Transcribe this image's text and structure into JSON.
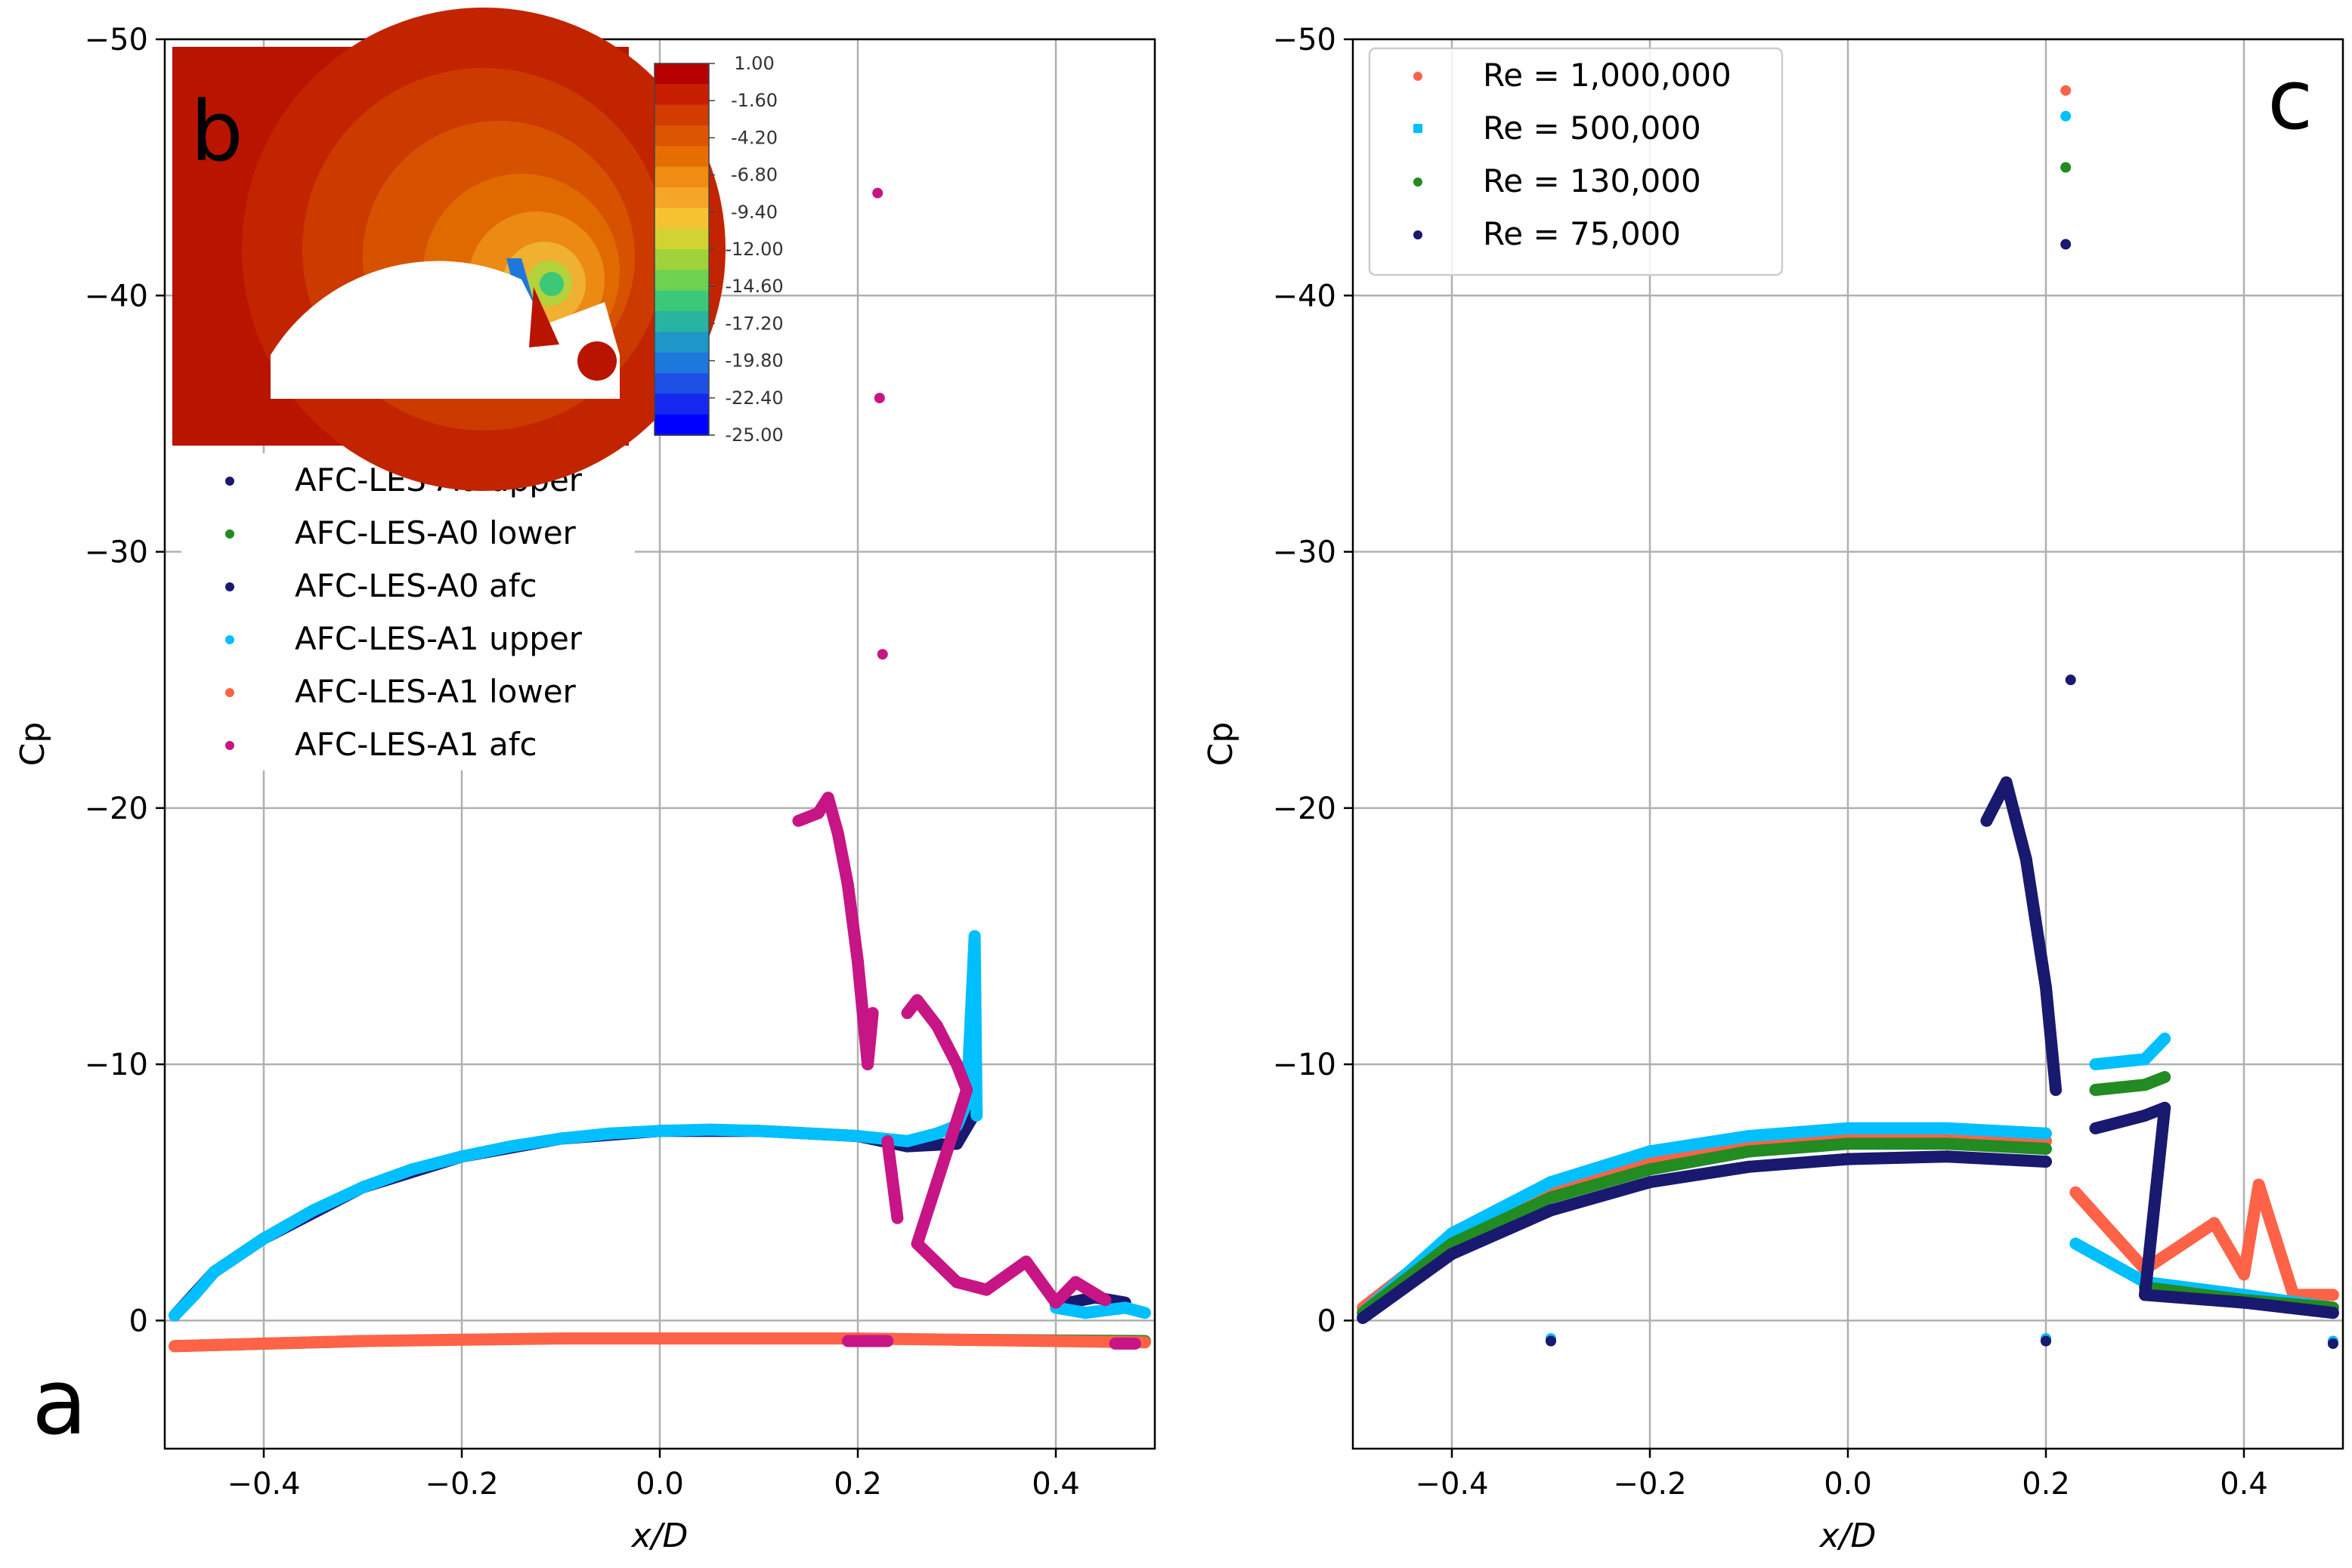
{
  "chart_data": [
    {
      "panel": "a",
      "type": "scatter",
      "panel_label": "a",
      "xlabel": "x/D",
      "ylabel": "Cp",
      "xlim": [
        -0.5,
        0.5
      ],
      "ylim": [
        5,
        -50
      ],
      "y_inverted": true,
      "grid": true,
      "xticks": [
        -0.4,
        -0.2,
        0.0,
        0.2,
        0.4
      ],
      "xtick_labels": [
        "−0.4",
        "−0.2",
        "0.0",
        "0.2",
        "0.4"
      ],
      "yticks": [
        -50,
        -40,
        -30,
        -20,
        -10,
        0
      ],
      "ytick_labels": [
        "−50",
        "−40",
        "−30",
        "−20",
        "−10",
        "0"
      ],
      "legend_position": "upper-left",
      "series": [
        {
          "name": "AFC-LES-A0 upper",
          "color": "#191970",
          "points": [
            [
              -0.49,
              -0.2
            ],
            [
              -0.45,
              -1.9
            ],
            [
              -0.4,
              -3.2
            ],
            [
              -0.3,
              -5.2
            ],
            [
              -0.2,
              -6.4
            ],
            [
              -0.1,
              -7.1
            ],
            [
              0.0,
              -7.4
            ],
            [
              0.1,
              -7.4
            ],
            [
              0.2,
              -7.2
            ],
            [
              0.25,
              -6.8
            ],
            [
              0.3,
              -6.9
            ],
            [
              0.32,
              -8.2
            ]
          ]
        },
        {
          "name": "AFC-LES-A0 lower",
          "color": "#228B22",
          "points": [
            [
              -0.49,
              1.0
            ],
            [
              -0.3,
              0.8
            ],
            [
              -0.1,
              0.7
            ],
            [
              0.1,
              0.7
            ],
            [
              0.3,
              0.75
            ],
            [
              0.49,
              0.8
            ]
          ]
        },
        {
          "name": "AFC-LES-A0 afc",
          "color": "#191970",
          "points": [
            [
              0.4,
              -0.6
            ],
            [
              0.44,
              -0.9
            ],
            [
              0.47,
              -0.7
            ]
          ]
        },
        {
          "name": "AFC-LES-A1 upper",
          "color": "#00BFFF",
          "points": [
            [
              -0.49,
              -0.2
            ],
            [
              -0.47,
              -1.0
            ],
            [
              -0.45,
              -1.9
            ],
            [
              -0.4,
              -3.2
            ],
            [
              -0.35,
              -4.3
            ],
            [
              -0.3,
              -5.2
            ],
            [
              -0.25,
              -5.9
            ],
            [
              -0.2,
              -6.4
            ],
            [
              -0.15,
              -6.8
            ],
            [
              -0.1,
              -7.1
            ],
            [
              -0.05,
              -7.3
            ],
            [
              0.0,
              -7.4
            ],
            [
              0.05,
              -7.45
            ],
            [
              0.1,
              -7.4
            ],
            [
              0.15,
              -7.3
            ],
            [
              0.2,
              -7.2
            ],
            [
              0.25,
              -7.0
            ],
            [
              0.28,
              -7.3
            ],
            [
              0.3,
              -7.6
            ],
            [
              0.31,
              -8.5
            ],
            [
              0.318,
              -15.0
            ],
            [
              0.32,
              -8.0
            ],
            [
              0.4,
              -0.5
            ],
            [
              0.43,
              -0.3
            ],
            [
              0.47,
              -0.5
            ],
            [
              0.49,
              -0.3
            ]
          ]
        },
        {
          "name": "AFC-LES-A1 lower",
          "color": "#FF6347",
          "points": [
            [
              -0.49,
              1.0
            ],
            [
              -0.4,
              0.9
            ],
            [
              -0.3,
              0.8
            ],
            [
              -0.2,
              0.75
            ],
            [
              -0.1,
              0.7
            ],
            [
              0.0,
              0.7
            ],
            [
              0.1,
              0.7
            ],
            [
              0.2,
              0.7
            ],
            [
              0.3,
              0.75
            ],
            [
              0.4,
              0.8
            ],
            [
              0.49,
              0.85
            ]
          ]
        },
        {
          "name": "AFC-LES-A1 afc",
          "color": "#C71585",
          "points": [
            [
              0.14,
              -19.5
            ],
            [
              0.16,
              -19.8
            ],
            [
              0.17,
              -20.4
            ],
            [
              0.18,
              -19.0
            ],
            [
              0.19,
              -17.0
            ],
            [
              0.2,
              -14.0
            ],
            [
              0.21,
              -10.0
            ],
            [
              0.215,
              -12.0
            ],
            [
              0.22,
              -44.0
            ],
            [
              0.222,
              -36.0
            ],
            [
              0.225,
              -26.0
            ],
            [
              0.23,
              -7.0
            ],
            [
              0.24,
              -4.0
            ],
            [
              0.25,
              -12.0
            ],
            [
              0.26,
              -12.5
            ],
            [
              0.28,
              -11.5
            ],
            [
              0.3,
              -10.0
            ],
            [
              0.31,
              -9.0
            ],
            [
              0.26,
              -3.0
            ],
            [
              0.3,
              -1.5
            ],
            [
              0.33,
              -1.2
            ],
            [
              0.37,
              -2.3
            ],
            [
              0.4,
              -0.7
            ],
            [
              0.42,
              -1.5
            ],
            [
              0.45,
              -0.8
            ],
            [
              0.19,
              0.8
            ],
            [
              0.23,
              0.8
            ],
            [
              0.46,
              0.9
            ],
            [
              0.48,
              0.9
            ]
          ]
        }
      ]
    },
    {
      "panel": "b",
      "type": "heatmap",
      "panel_label": "b",
      "description_role": "inset contour of pressure coefficient",
      "colorbar_ticks": [
        "1.00",
        "-1.60",
        "-4.20",
        "-6.80",
        "-9.40",
        "-12.00",
        "-14.60",
        "-17.20",
        "-19.80",
        "-22.40",
        "-25.00"
      ],
      "colorbar_levels": [
        "#b40000",
        "#c81e00",
        "#d23c00",
        "#dc5500",
        "#e66e00",
        "#f08c14",
        "#f5a528",
        "#f5c332",
        "#d2d232",
        "#a0d23c",
        "#6ed250",
        "#3cc878",
        "#28b4a0",
        "#1e96c8",
        "#1e78dc",
        "#1e50e6",
        "#1428f0",
        "#0000ff"
      ]
    },
    {
      "panel": "c",
      "type": "scatter",
      "panel_label": "c",
      "xlabel": "x/D",
      "ylabel": "Cp",
      "xlim": [
        -0.5,
        0.5
      ],
      "ylim": [
        5,
        -50
      ],
      "y_inverted": true,
      "grid": true,
      "xticks": [
        -0.4,
        -0.2,
        0.0,
        0.2,
        0.4
      ],
      "xtick_labels": [
        "−0.4",
        "−0.2",
        "0.0",
        "0.2",
        "0.4"
      ],
      "yticks": [
        -50,
        -40,
        -30,
        -20,
        -10,
        0
      ],
      "ytick_labels": [
        "−50",
        "−40",
        "−30",
        "−20",
        "−10",
        "0"
      ],
      "legend_position": "upper-left",
      "series": [
        {
          "name": "Re = 1,000,000",
          "color": "#FF6347",
          "points": [
            [
              -0.49,
              -0.5
            ],
            [
              -0.4,
              -3.2
            ],
            [
              -0.3,
              -5.0
            ],
            [
              -0.2,
              -6.2
            ],
            [
              -0.1,
              -6.9
            ],
            [
              0.0,
              -7.2
            ],
            [
              0.1,
              -7.2
            ],
            [
              0.2,
              -7.0
            ],
            [
              0.22,
              -48.0
            ],
            [
              0.23,
              -5.0
            ],
            [
              0.3,
              -2.0
            ],
            [
              0.37,
              -3.8
            ],
            [
              0.4,
              -1.8
            ],
            [
              0.415,
              -5.3
            ],
            [
              0.45,
              -1.0
            ],
            [
              0.49,
              -1.0
            ],
            [
              -0.3,
              0.7
            ],
            [
              0.2,
              0.7
            ],
            [
              0.49,
              0.8
            ]
          ]
        },
        {
          "name": "Re = 500,000",
          "color": "#00BFFF",
          "points": [
            [
              -0.49,
              -0.3
            ],
            [
              -0.4,
              -3.4
            ],
            [
              -0.3,
              -5.4
            ],
            [
              -0.2,
              -6.6
            ],
            [
              -0.1,
              -7.2
            ],
            [
              0.0,
              -7.5
            ],
            [
              0.1,
              -7.5
            ],
            [
              0.2,
              -7.3
            ],
            [
              0.22,
              -47.0
            ],
            [
              0.25,
              -10.0
            ],
            [
              0.3,
              -10.2
            ],
            [
              0.32,
              -11.0
            ],
            [
              0.23,
              -3.0
            ],
            [
              0.3,
              -1.5
            ],
            [
              0.4,
              -1.0
            ],
            [
              0.49,
              -0.5
            ],
            [
              -0.3,
              0.7
            ],
            [
              0.2,
              0.7
            ],
            [
              0.49,
              0.8
            ]
          ]
        },
        {
          "name": "Re = 130,000",
          "color": "#228B22",
          "points": [
            [
              -0.49,
              -0.3
            ],
            [
              -0.4,
              -3.0
            ],
            [
              -0.3,
              -4.8
            ],
            [
              -0.2,
              -5.9
            ],
            [
              -0.1,
              -6.6
            ],
            [
              0.0,
              -6.9
            ],
            [
              0.1,
              -6.9
            ],
            [
              0.2,
              -6.7
            ],
            [
              0.22,
              -45.0
            ],
            [
              0.25,
              -9.0
            ],
            [
              0.3,
              -9.2
            ],
            [
              0.32,
              -9.5
            ],
            [
              0.3,
              -1.3
            ],
            [
              0.4,
              -0.8
            ],
            [
              0.49,
              -0.5
            ],
            [
              -0.3,
              0.8
            ],
            [
              0.2,
              0.8
            ],
            [
              0.49,
              0.9
            ]
          ]
        },
        {
          "name": "Re = 75,000",
          "color": "#191970",
          "points": [
            [
              -0.49,
              -0.1
            ],
            [
              -0.4,
              -2.6
            ],
            [
              -0.3,
              -4.3
            ],
            [
              -0.2,
              -5.4
            ],
            [
              -0.1,
              -6.0
            ],
            [
              0.0,
              -6.3
            ],
            [
              0.1,
              -6.4
            ],
            [
              0.2,
              -6.2
            ],
            [
              0.14,
              -19.5
            ],
            [
              0.16,
              -21.0
            ],
            [
              0.18,
              -18.0
            ],
            [
              0.2,
              -13.0
            ],
            [
              0.21,
              -9.0
            ],
            [
              0.22,
              -42.0
            ],
            [
              0.225,
              -25.0
            ],
            [
              0.25,
              -7.5
            ],
            [
              0.3,
              -8.0
            ],
            [
              0.32,
              -8.3
            ],
            [
              0.3,
              -1.0
            ],
            [
              0.4,
              -0.7
            ],
            [
              0.49,
              -0.3
            ],
            [
              -0.3,
              0.8
            ],
            [
              0.2,
              0.8
            ],
            [
              0.49,
              0.9
            ]
          ]
        }
      ]
    }
  ]
}
